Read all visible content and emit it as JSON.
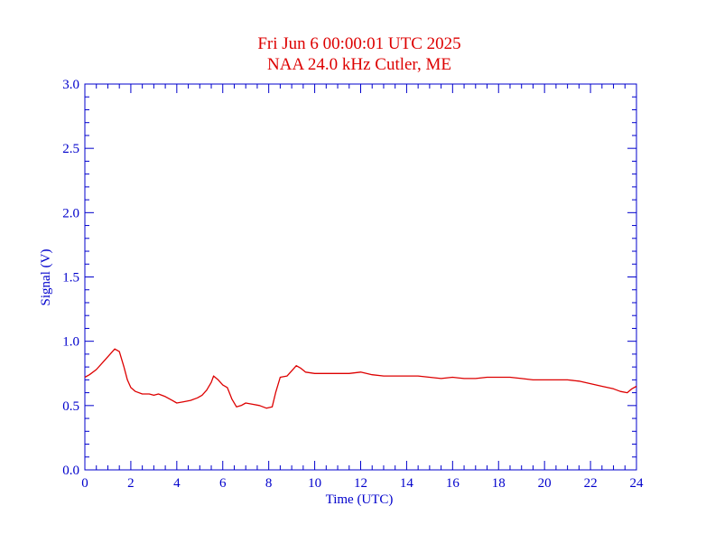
{
  "chart_data": {
    "type": "line",
    "title": "Fri Jun 6 00:00:01 UTC 2025",
    "subtitle": "NAA 24.0 kHz Cutler, ME",
    "xlabel": "Time (UTC)",
    "ylabel": "Signal (V)",
    "xlim": [
      0,
      24
    ],
    "ylim": [
      0,
      3.0
    ],
    "x_ticks": [
      0,
      2,
      4,
      6,
      8,
      10,
      12,
      14,
      16,
      18,
      20,
      22,
      24
    ],
    "x_tick_labels": [
      "0",
      "2",
      "4",
      "6",
      "8",
      "10",
      "12",
      "14",
      "16",
      "18",
      "20",
      "22",
      "24"
    ],
    "y_ticks": [
      0,
      0.5,
      1.0,
      1.5,
      2.0,
      2.5,
      3.0
    ],
    "y_tick_labels": [
      "0.0",
      "0.5",
      "1.0",
      "1.5",
      "2.0",
      "2.5",
      "3.0"
    ],
    "grid": false,
    "series": [
      {
        "color": "#dd0000",
        "x": [
          0.0,
          0.2,
          0.5,
          0.8,
          1.1,
          1.3,
          1.5,
          1.7,
          1.85,
          2.0,
          2.2,
          2.5,
          2.8,
          3.0,
          3.2,
          3.5,
          3.8,
          4.0,
          4.3,
          4.6,
          4.9,
          5.1,
          5.3,
          5.5,
          5.6,
          5.8,
          6.0,
          6.2,
          6.4,
          6.6,
          6.8,
          7.0,
          7.3,
          7.6,
          7.9,
          8.15,
          8.3,
          8.5,
          8.8,
          9.0,
          9.2,
          9.4,
          9.6,
          10.0,
          10.5,
          11.0,
          11.5,
          12.0,
          12.5,
          13.0,
          13.5,
          14.0,
          14.5,
          15.0,
          15.5,
          16.0,
          16.5,
          17.0,
          17.5,
          18.0,
          18.5,
          19.0,
          19.5,
          20.0,
          20.5,
          21.0,
          21.5,
          22.0,
          22.5,
          23.0,
          23.3,
          23.6,
          23.8,
          24.0
        ],
        "y": [
          0.72,
          0.74,
          0.78,
          0.84,
          0.9,
          0.94,
          0.92,
          0.8,
          0.7,
          0.64,
          0.61,
          0.59,
          0.59,
          0.58,
          0.59,
          0.57,
          0.54,
          0.52,
          0.53,
          0.54,
          0.56,
          0.58,
          0.62,
          0.68,
          0.73,
          0.7,
          0.66,
          0.64,
          0.55,
          0.49,
          0.5,
          0.52,
          0.51,
          0.5,
          0.48,
          0.49,
          0.6,
          0.72,
          0.73,
          0.77,
          0.81,
          0.79,
          0.76,
          0.75,
          0.75,
          0.75,
          0.75,
          0.76,
          0.74,
          0.73,
          0.73,
          0.73,
          0.73,
          0.72,
          0.71,
          0.72,
          0.71,
          0.71,
          0.72,
          0.72,
          0.72,
          0.71,
          0.7,
          0.7,
          0.7,
          0.7,
          0.69,
          0.67,
          0.65,
          0.63,
          0.61,
          0.6,
          0.63,
          0.65
        ]
      }
    ]
  },
  "colors": {
    "title": "#dd0000",
    "axes": "#0000cc",
    "series": "#dd0000",
    "background": "#ffffff"
  }
}
